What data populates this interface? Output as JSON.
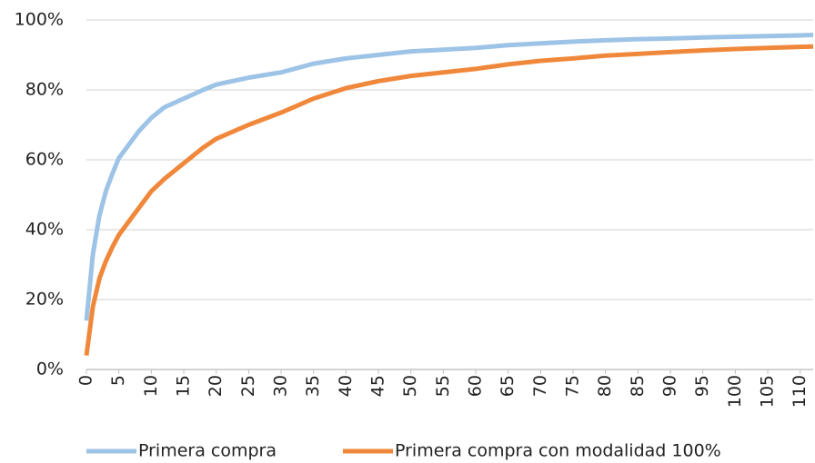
{
  "chart_data": {
    "type": "line",
    "x": [
      0,
      1,
      2,
      3,
      4,
      5,
      6,
      8,
      10,
      12,
      15,
      18,
      20,
      25,
      30,
      35,
      40,
      45,
      50,
      55,
      60,
      65,
      70,
      75,
      80,
      85,
      90,
      95,
      100,
      105,
      110,
      112
    ],
    "series": [
      {
        "name": "Primera compra",
        "color": "#9dc3e6",
        "values": [
          14,
          33,
          44,
          51,
          56,
          60.5,
          63,
          68,
          72,
          75,
          77.5,
          80,
          81.5,
          83.5,
          85,
          87.5,
          89,
          90,
          91,
          91.5,
          92,
          92.8,
          93.3,
          93.8,
          94.2,
          94.5,
          94.7,
          95,
          95.2,
          95.4,
          95.6,
          95.7
        ]
      },
      {
        "name": "Primera compra con modalidad 100%",
        "color": "#f0883b",
        "values": [
          4,
          18,
          26,
          31,
          35,
          38.5,
          41,
          46,
          51,
          54.5,
          59,
          63.5,
          66,
          70,
          73.5,
          77.5,
          80.5,
          82.5,
          84,
          85,
          86,
          87.3,
          88.3,
          89,
          89.8,
          90.3,
          90.8,
          91.3,
          91.7,
          92,
          92.3,
          92.4
        ]
      }
    ],
    "xlim": [
      0,
      112
    ],
    "xticks": [
      0,
      5,
      10,
      15,
      20,
      25,
      30,
      35,
      40,
      45,
      50,
      55,
      60,
      65,
      70,
      75,
      80,
      85,
      90,
      95,
      100,
      105,
      110
    ],
    "ylim": [
      0,
      100
    ],
    "yticks": [
      {
        "value": 0,
        "label": "0%"
      },
      {
        "value": 20,
        "label": "20%"
      },
      {
        "value": 40,
        "label": "40%"
      },
      {
        "value": 60,
        "label": "60%"
      },
      {
        "value": 80,
        "label": "80%"
      },
      {
        "value": 100,
        "label": "100%"
      }
    ],
    "grid": true,
    "legend": "bottom"
  }
}
